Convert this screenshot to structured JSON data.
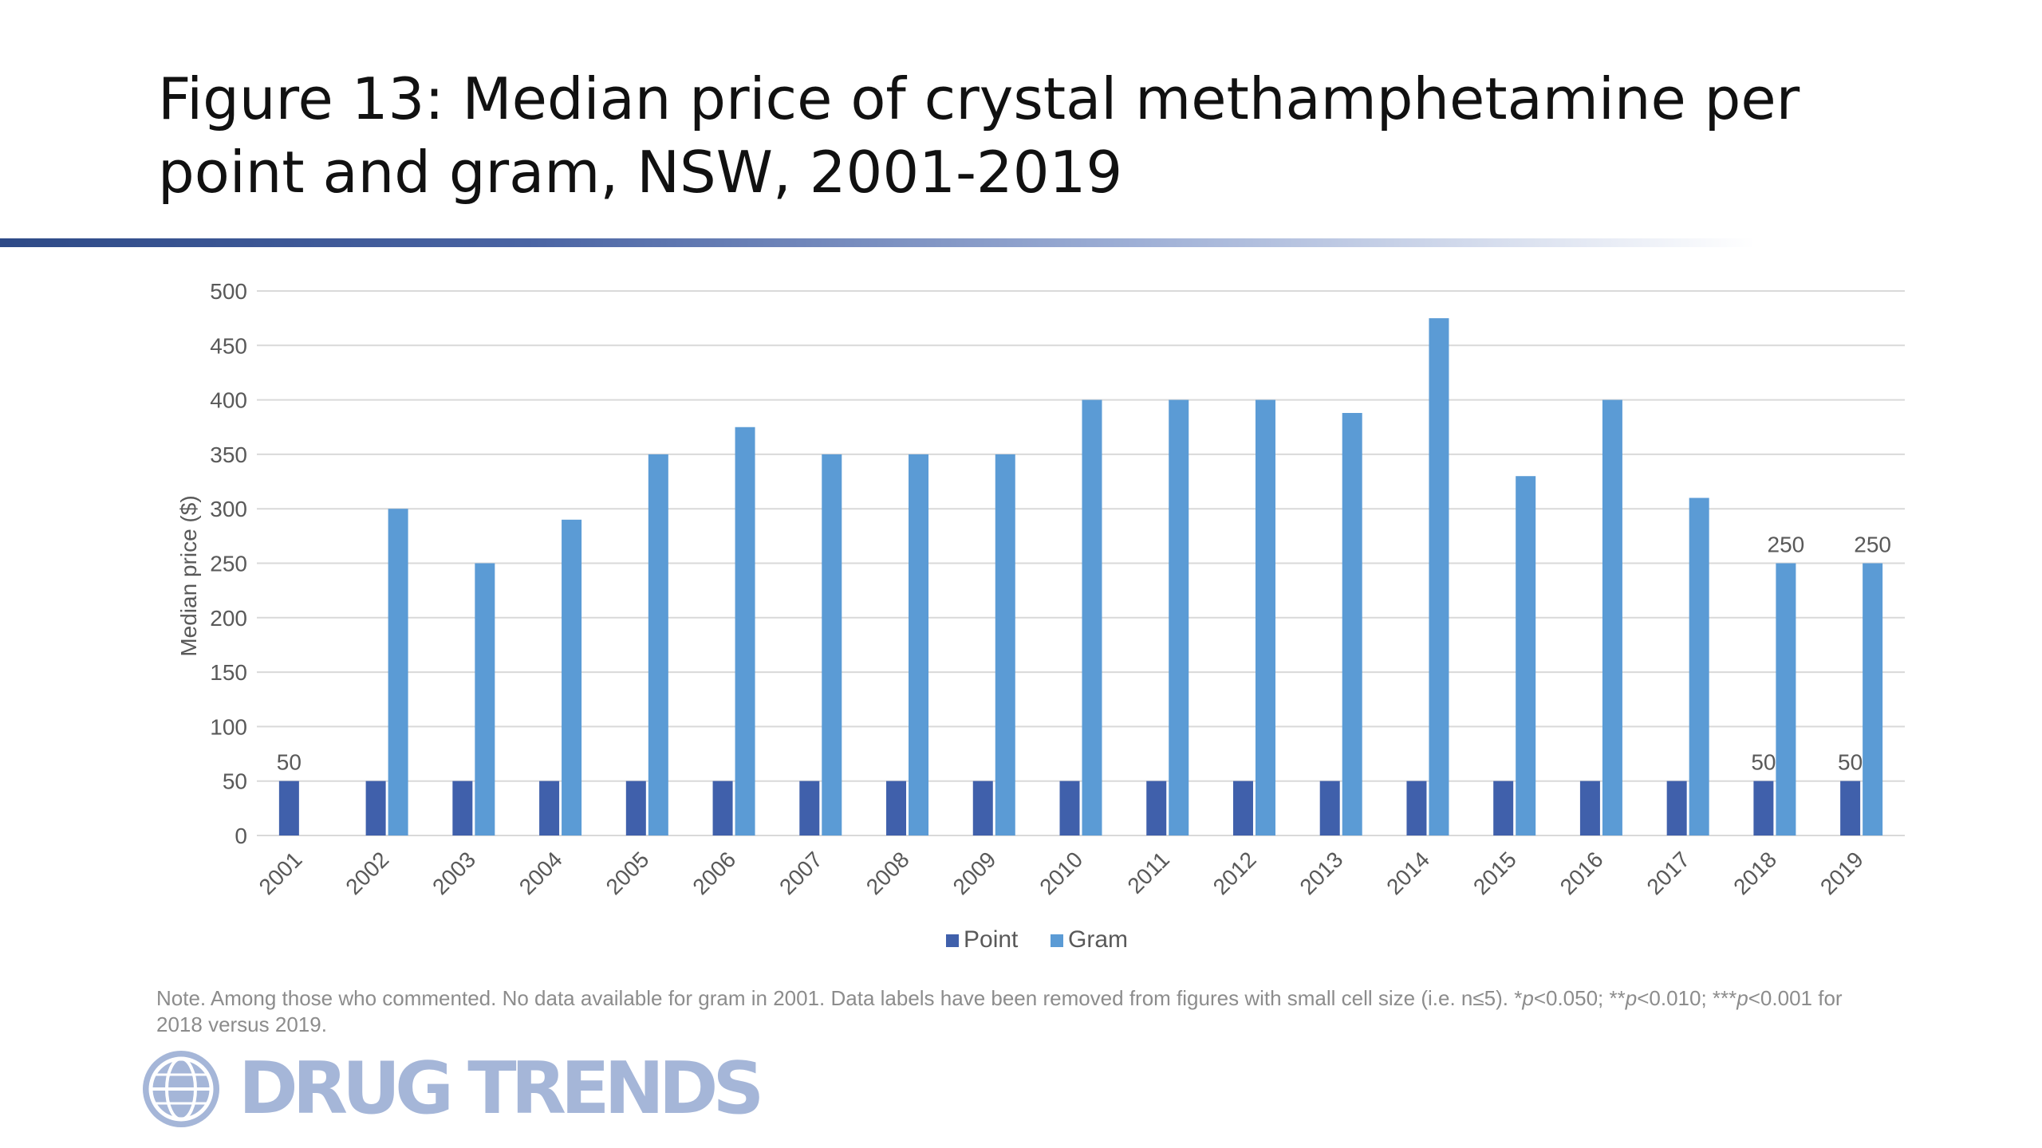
{
  "slide": {
    "title": "Figure 13: Median price of crystal methamphetamine per point and gram, NSW, 2001-2019",
    "note_prefix": "Note. Among those who commented. No data available for gram in 2001. Data labels have been removed from figures with small cell size (i.e. n≤5).  *",
    "note_p1": "p",
    "note_mid1": "<0.050; **",
    "note_p2": "p",
    "note_mid2": "<0.010; ***",
    "note_p3": "p",
    "note_suffix": "<0.001 for 2018 versus 2019.",
    "logo_text": "DRUG TRENDS",
    "logo_icon": "globe-icon"
  },
  "colors": {
    "point": "#4060ab",
    "gram": "#5b9bd5",
    "gridline": "#d9d9d9",
    "axis_text": "#595959",
    "title_rule": "#2e4a87",
    "logo": "#a5b6d8"
  },
  "chart_data": {
    "type": "bar",
    "title": "",
    "xlabel": "",
    "ylabel": "Median price ($)",
    "ylim": [
      0,
      500
    ],
    "yticks": [
      0,
      50,
      100,
      150,
      200,
      250,
      300,
      350,
      400,
      450,
      500
    ],
    "grid": true,
    "legend_position": "bottom",
    "categories": [
      "2001",
      "2002",
      "2003",
      "2004",
      "2005",
      "2006",
      "2007",
      "2008",
      "2009",
      "2010",
      "2011",
      "2012",
      "2013",
      "2014",
      "2015",
      "2016",
      "2017",
      "2018",
      "2019"
    ],
    "series": [
      {
        "name": "Point",
        "color": "#4060ab",
        "values": [
          50,
          50,
          50,
          50,
          50,
          50,
          50,
          50,
          50,
          50,
          50,
          50,
          50,
          50,
          50,
          50,
          50,
          50,
          50
        ]
      },
      {
        "name": "Gram",
        "color": "#5b9bd5",
        "values": [
          null,
          300,
          250,
          290,
          350,
          375,
          350,
          350,
          350,
          400,
          400,
          400,
          388,
          475,
          330,
          400,
          310,
          250,
          250
        ]
      }
    ],
    "data_labels": [
      {
        "series": "Point",
        "category": "2001",
        "text": "50"
      },
      {
        "series": "Point",
        "category": "2018",
        "text": "50"
      },
      {
        "series": "Point",
        "category": "2019",
        "text": "50"
      },
      {
        "series": "Gram",
        "category": "2018",
        "text": "250"
      },
      {
        "series": "Gram",
        "category": "2019",
        "text": "250"
      }
    ]
  }
}
